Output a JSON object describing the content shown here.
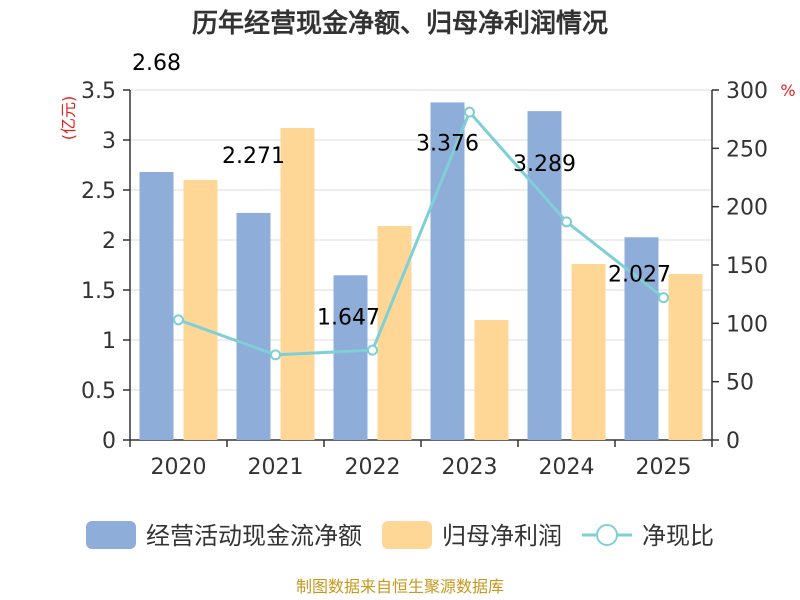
{
  "chart_data": {
    "type": "bar",
    "title": "历年经营现金净额、归母净利润情况",
    "categories": [
      "2020",
      "2021",
      "2022",
      "2023",
      "2024",
      "2025"
    ],
    "series": [
      {
        "name": "经营活动现金流净额",
        "type": "bar",
        "axis": "left",
        "color": "#8eadd9",
        "values": [
          2.68,
          2.271,
          1.647,
          3.376,
          3.289,
          2.027
        ]
      },
      {
        "name": "归母净利润",
        "type": "bar",
        "axis": "left",
        "color": "#fed797",
        "values": [
          2.6,
          3.12,
          2.14,
          1.2,
          1.76,
          1.66
        ]
      },
      {
        "name": "净现比",
        "type": "line",
        "axis": "right",
        "color": "#7fcfd6",
        "values": [
          103,
          73,
          77,
          281,
          187,
          122
        ]
      }
    ],
    "data_labels": [
      "2.68",
      "2.271",
      "1.647",
      "3.376",
      "3.289",
      "2.027"
    ],
    "y_left": {
      "label": "(亿元)",
      "ylim": [
        0,
        3.5
      ],
      "ticks": [
        "0",
        "0.5",
        "1",
        "1.5",
        "2",
        "2.5",
        "3",
        "3.5"
      ]
    },
    "y_right": {
      "label": "%",
      "ylim": [
        0,
        300
      ],
      "ticks": [
        "0",
        "50",
        "100",
        "150",
        "200",
        "250",
        "300"
      ]
    },
    "grid": true,
    "legend_position": "bottom"
  },
  "footer": "制图数据来自恒生聚源数据库"
}
